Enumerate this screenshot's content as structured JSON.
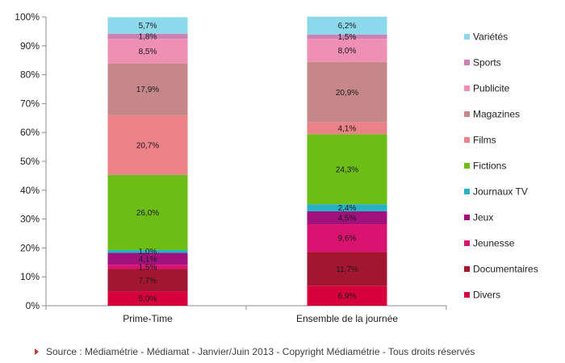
{
  "chart_data": {
    "type": "bar",
    "stacked": true,
    "categories": [
      "Prime-Time",
      "Ensemble de la journée"
    ],
    "y_ticks": [
      "0%",
      "10%",
      "20%",
      "30%",
      "40%",
      "50%",
      "60%",
      "70%",
      "80%",
      "90%",
      "100%"
    ],
    "ylim": [
      0,
      100
    ],
    "grid": false,
    "legend_position": "right",
    "series": [
      {
        "name": "Divers",
        "color": "#d6003c",
        "values": [
          5.0,
          6.9
        ],
        "labels": [
          "5,0%",
          "6,9%"
        ]
      },
      {
        "name": "Documentaires",
        "color": "#a3162f",
        "values": [
          7.7,
          11.7
        ],
        "labels": [
          "7,7%",
          "11,7%"
        ]
      },
      {
        "name": "Jeunesse",
        "color": "#d9136f",
        "values": [
          1.5,
          9.6
        ],
        "labels": [
          "1,5%",
          "9,6%"
        ]
      },
      {
        "name": "Jeux",
        "color": "#a0117e",
        "values": [
          4.1,
          4.5
        ],
        "labels": [
          "4,1%",
          "4,5%"
        ]
      },
      {
        "name": "Journaux TV",
        "color": "#24b2c8",
        "values": [
          1.0,
          2.4
        ],
        "labels": [
          "1,0%",
          "2,4%"
        ]
      },
      {
        "name": "Fictions",
        "color": "#6cbd16",
        "values": [
          26.0,
          24.3
        ],
        "labels": [
          "26,0%",
          "24,3%"
        ]
      },
      {
        "name": "Films",
        "color": "#ea8288",
        "values": [
          20.7,
          4.1
        ],
        "labels": [
          "20,7%",
          "4,1%"
        ]
      },
      {
        "name": "Magazines",
        "color": "#c5878a",
        "values": [
          17.9,
          20.9
        ],
        "labels": [
          "17,9%",
          "20,9%"
        ]
      },
      {
        "name": "Publicite",
        "color": "#ee8fb3",
        "values": [
          8.5,
          8.0
        ],
        "labels": [
          "8,5%",
          "8,0%"
        ]
      },
      {
        "name": "Sports",
        "color": "#cc80b4",
        "values": [
          1.8,
          1.5
        ],
        "labels": [
          "1,8%",
          "1,5%"
        ]
      },
      {
        "name": "Variétés",
        "color": "#8cd9ec",
        "values": [
          5.7,
          6.2
        ],
        "labels": [
          "5,7%",
          "6,2%"
        ]
      }
    ],
    "source": "Source : Médiamétrie - Médiamat - Janvier/Juin 2013 - Copyright Médiamétrie - Tous droits réservés",
    "source_marker_color": "#c0392b"
  }
}
